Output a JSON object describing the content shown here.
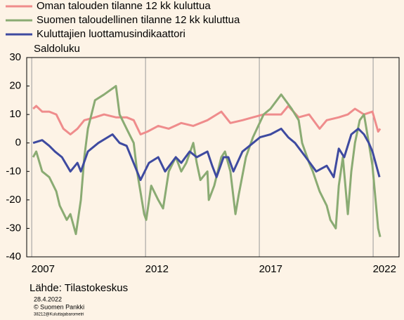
{
  "chart_data": {
    "type": "line",
    "ylabel": "Saldoluku",
    "source": "Lähde: Tilastokeskus",
    "footnotes": [
      "28.4.2022",
      "© Suomen Pankki",
      "38212@Kuluttajabarometri"
    ],
    "xlim": [
      2006.78,
      2023.14
    ],
    "xticks": [
      {
        "value": 2007,
        "label": "2007"
      },
      {
        "value": 2012,
        "label": "2012"
      },
      {
        "value": 2017,
        "label": "2017"
      },
      {
        "value": 2022,
        "label": "2022"
      }
    ],
    "ylim": [
      -40,
      30
    ],
    "yticks": [
      30,
      20,
      10,
      0,
      -10,
      -20,
      -30,
      -40
    ],
    "xgrid": true,
    "ygrid": false,
    "legend": "top-left",
    "series": [
      {
        "name": "Oman talouden tilanne 12 kk kuluttua",
        "color": "#ef8c8c",
        "x": [
          2007.06,
          2007.2,
          2007.46,
          2007.77,
          2008.08,
          2008.39,
          2008.7,
          2009.01,
          2009.31,
          2009.78,
          2010.18,
          2010.7,
          2011.17,
          2011.48,
          2011.78,
          2012.09,
          2012.56,
          2013.02,
          2013.57,
          2014.1,
          2014.72,
          2015.33,
          2015.73,
          2016.26,
          2016.72,
          2017.19,
          2017.96,
          2018.27,
          2018.73,
          2019.19,
          2019.65,
          2019.96,
          2020.49,
          2020.89,
          2021.2,
          2021.6,
          2021.97,
          2022.22,
          2022.31
        ],
        "values": [
          12,
          13,
          11,
          11,
          10,
          5,
          3,
          5,
          8,
          9,
          10,
          9,
          9,
          8,
          3,
          4,
          6,
          5,
          7,
          6,
          8,
          11,
          7,
          8,
          9,
          10,
          10,
          13,
          9,
          10,
          5,
          8,
          9,
          10,
          12,
          10,
          11,
          4,
          5
        ]
      },
      {
        "name": "Suomen taloudellinen tilanne 12 kk kuluttua",
        "color": "#8aab73",
        "x": [
          2007.06,
          2007.2,
          2007.46,
          2007.77,
          2008.08,
          2008.23,
          2008.54,
          2008.7,
          2008.94,
          2009.16,
          2009.31,
          2009.47,
          2009.78,
          2010.18,
          2010.7,
          2010.86,
          2011.17,
          2011.48,
          2011.63,
          2011.94,
          2012.03,
          2012.25,
          2012.56,
          2012.77,
          2013.02,
          2013.33,
          2013.57,
          2013.79,
          2014.1,
          2014.25,
          2014.41,
          2014.72,
          2014.78,
          2015.02,
          2015.33,
          2015.49,
          2015.73,
          2015.95,
          2016.1,
          2016.41,
          2016.72,
          2017.19,
          2017.49,
          2017.96,
          2018.42,
          2018.73,
          2018.88,
          2019.19,
          2019.35,
          2019.65,
          2019.96,
          2020.12,
          2020.36,
          2020.49,
          2020.67,
          2020.89,
          2021.04,
          2021.2,
          2021.41,
          2021.6,
          2021.81,
          2021.97,
          2022.22,
          2022.31
        ],
        "values": [
          -5,
          -3,
          -10,
          -12,
          -17,
          -22,
          -27,
          -25,
          -32,
          -20,
          -5,
          5,
          15,
          17,
          20,
          10,
          5,
          0,
          -10,
          -25,
          -27,
          -15,
          -20,
          -23,
          -10,
          -5,
          -10,
          -7,
          0,
          -7,
          -13,
          -10,
          -20,
          -15,
          -5,
          -3,
          -10,
          -25,
          -18,
          -5,
          2,
          10,
          12,
          17,
          12,
          8,
          0,
          -7,
          -10,
          -17,
          -22,
          -27,
          -30,
          -15,
          -5,
          -25,
          -10,
          0,
          8,
          10,
          0,
          -8,
          -30,
          -33
        ]
      },
      {
        "name": "Kuluttajien luottamusindikaattori",
        "color": "#3e4aa0",
        "x": [
          2007.06,
          2007.46,
          2007.77,
          2008.02,
          2008.33,
          2008.7,
          2009.01,
          2009.16,
          2009.47,
          2009.93,
          2010.55,
          2010.86,
          2011.17,
          2011.63,
          2011.78,
          2012.15,
          2012.56,
          2012.86,
          2013.33,
          2013.57,
          2013.94,
          2014.25,
          2014.72,
          2014.93,
          2015.12,
          2015.43,
          2015.64,
          2015.86,
          2016.26,
          2016.57,
          2017.03,
          2017.49,
          2017.96,
          2018.27,
          2018.57,
          2019.04,
          2019.5,
          2019.96,
          2020.27,
          2020.49,
          2020.73,
          2021.04,
          2021.35,
          2021.6,
          2021.81,
          2021.97,
          2022.28
        ],
        "values": [
          0,
          1,
          -1,
          -3,
          -5,
          -10,
          -7,
          -10,
          -3,
          0,
          3,
          0,
          -1,
          -10,
          -13,
          -7,
          -5,
          -10,
          -5,
          -7,
          -3,
          -5,
          -3,
          -8,
          -12,
          -5,
          -5,
          -10,
          -3,
          -1,
          2,
          3,
          5,
          2,
          0,
          -5,
          -10,
          -8,
          -12,
          -2,
          -5,
          3,
          5,
          3,
          0,
          -3,
          -12
        ]
      }
    ]
  }
}
